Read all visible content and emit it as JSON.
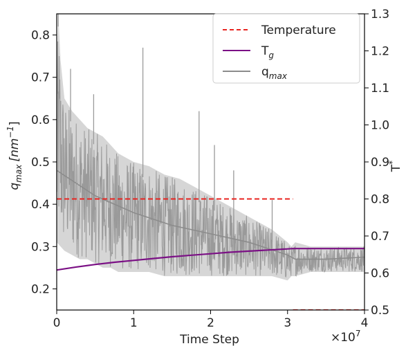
{
  "chart_data": {
    "type": "line",
    "x_axis": {
      "label": "Time Step",
      "multiplier": "×10",
      "multiplier_exp": "7",
      "lim": [
        0,
        4
      ],
      "ticks": [
        0,
        1,
        2,
        3,
        4
      ],
      "tick_labels": [
        "0",
        "1",
        "2",
        "3",
        "4"
      ]
    },
    "y_left": {
      "label_main": "q",
      "label_sub": "max",
      "label_units": "[nm",
      "label_units_exp": "−1",
      "label_close": "]",
      "lim": [
        0.15,
        0.85
      ],
      "ticks": [
        0.2,
        0.3,
        0.4,
        0.5,
        0.6,
        0.7,
        0.8
      ],
      "tick_labels": [
        "0.2",
        "0.3",
        "0.4",
        "0.5",
        "0.6",
        "0.7",
        "0.8"
      ]
    },
    "y_right": {
      "label": "T",
      "label_sup": "*",
      "lim": [
        0.5,
        1.3
      ],
      "ticks": [
        0.5,
        0.6,
        0.7,
        0.8,
        0.9,
        1.0,
        1.1,
        1.2,
        1.3
      ],
      "tick_labels": [
        "0.5",
        "0.6",
        "0.7",
        "0.8",
        "0.9",
        "1.0",
        "1.1",
        "1.2",
        "1.3"
      ]
    },
    "legend": {
      "position": "top-right",
      "entries": [
        {
          "name": "Temperature",
          "color": "#e8231f",
          "style": "dashed"
        },
        {
          "name": "T",
          "sub": "g",
          "color": "#7b1085",
          "style": "solid"
        },
        {
          "name": "q",
          "sub": "max",
          "color": "#8c8c8c",
          "style": "solid"
        }
      ]
    },
    "series": [
      {
        "name": "Temperature",
        "axis": "right",
        "color": "#e8231f",
        "style": "dashed",
        "segments": [
          {
            "x": [
              0,
              3.07
            ],
            "y": [
              0.8,
              0.8
            ]
          },
          {
            "x": [
              3.07,
              4.0
            ],
            "y": [
              0.5,
              0.5
            ]
          }
        ]
      },
      {
        "name": "Tg",
        "axis": "right",
        "color": "#7b1085",
        "style": "solid",
        "x": [
          0,
          0.25,
          0.5,
          0.75,
          1.0,
          1.25,
          1.5,
          1.75,
          2.0,
          2.25,
          2.5,
          2.75,
          3.0,
          3.07,
          3.5,
          4.0
        ],
        "y": [
          0.608,
          0.616,
          0.623,
          0.629,
          0.634,
          0.639,
          0.644,
          0.648,
          0.652,
          0.656,
          0.659,
          0.662,
          0.665,
          0.666,
          0.666,
          0.666
        ]
      },
      {
        "name": "qmax",
        "axis": "left",
        "color": "#8c8c8c",
        "style": "solid",
        "upper_x": [
          0,
          0.02,
          0.05,
          0.1,
          0.2,
          0.3,
          0.4,
          0.5,
          0.6,
          0.7,
          0.8,
          0.9,
          1.0,
          1.2,
          1.4,
          1.6,
          1.8,
          2.0,
          2.2,
          2.4,
          2.6,
          2.8,
          3.0,
          3.05,
          3.1,
          3.3,
          3.5,
          3.7,
          3.9,
          4.0
        ],
        "upper_y": [
          0.66,
          0.85,
          0.74,
          0.65,
          0.62,
          0.6,
          0.58,
          0.57,
          0.56,
          0.54,
          0.52,
          0.51,
          0.5,
          0.49,
          0.47,
          0.46,
          0.44,
          0.42,
          0.4,
          0.38,
          0.36,
          0.34,
          0.31,
          0.3,
          0.31,
          0.3,
          0.3,
          0.3,
          0.3,
          0.3
        ],
        "lower_x": [
          0,
          0.05,
          0.1,
          0.2,
          0.3,
          0.4,
          0.5,
          0.6,
          0.7,
          0.8,
          0.9,
          1.0,
          1.2,
          1.4,
          1.6,
          1.8,
          2.0,
          2.2,
          2.4,
          2.6,
          2.8,
          3.0,
          3.05,
          3.1,
          3.3,
          3.5,
          3.7,
          3.9,
          4.0
        ],
        "lower_y": [
          0.31,
          0.3,
          0.29,
          0.28,
          0.27,
          0.27,
          0.26,
          0.25,
          0.25,
          0.24,
          0.24,
          0.24,
          0.24,
          0.23,
          0.23,
          0.23,
          0.23,
          0.23,
          0.23,
          0.23,
          0.23,
          0.22,
          0.23,
          0.23,
          0.24,
          0.24,
          0.24,
          0.24,
          0.24
        ],
        "spikes": [
          {
            "x": 0.02,
            "y": 0.85
          },
          {
            "x": 0.18,
            "y": 0.72
          },
          {
            "x": 0.48,
            "y": 0.66
          },
          {
            "x": 1.12,
            "y": 0.77
          },
          {
            "x": 1.85,
            "y": 0.62
          },
          {
            "x": 2.05,
            "y": 0.54
          },
          {
            "x": 2.3,
            "y": 0.48
          },
          {
            "x": 2.8,
            "y": 0.41
          }
        ],
        "mean_x": [
          0,
          0.5,
          1.0,
          1.5,
          2.0,
          2.5,
          3.0,
          3.1,
          3.5,
          4.0
        ],
        "mean_y": [
          0.48,
          0.42,
          0.38,
          0.35,
          0.33,
          0.31,
          0.28,
          0.27,
          0.27,
          0.275
        ]
      }
    ]
  }
}
